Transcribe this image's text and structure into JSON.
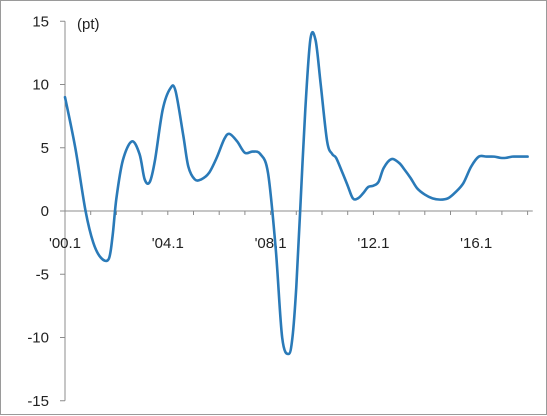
{
  "chart_data": {
    "type": "line",
    "title": "",
    "xlabel": "",
    "ylabel": "",
    "y_unit": "(pt)",
    "ylim": [
      -15,
      15
    ],
    "y_ticks": [
      15,
      10,
      5,
      0,
      -5,
      -10,
      -15
    ],
    "x_tick_labels": [
      "'00.1",
      "'04.1",
      "'08.1",
      "'12.1",
      "'16.1"
    ],
    "x_tick_years": [
      2000,
      2004,
      2008,
      2012,
      2016
    ],
    "xlim": [
      2000,
      2018.2
    ],
    "grid": false,
    "legend": "none",
    "colors": {
      "line": "#2a7ab8",
      "axis": "#8c8c8c"
    },
    "series": [
      {
        "x": [
          2000.0,
          2000.4,
          2000.8,
          2001.1,
          2001.4,
          2001.7,
          2001.85,
          2002.0,
          2002.25,
          2002.6,
          2002.9,
          2003.1,
          2003.3,
          2003.5,
          2003.8,
          2004.1,
          2004.3,
          2004.6,
          2004.8,
          2005.05,
          2005.3,
          2005.6,
          2005.9,
          2006.2,
          2006.4,
          2006.7,
          2007.0,
          2007.3,
          2007.6,
          2007.9,
          2008.2,
          2008.45,
          2008.7,
          2008.85,
          2009.0,
          2009.15,
          2009.35,
          2009.55,
          2009.75,
          2009.95,
          2010.2,
          2010.4,
          2010.55,
          2010.8,
          2011.0,
          2011.2,
          2011.4,
          2011.6,
          2011.8,
          2012.0,
          2012.2,
          2012.4,
          2012.7,
          2013.0,
          2013.2,
          2013.45,
          2013.7,
          2014.0,
          2014.3,
          2014.6,
          2014.9,
          2015.2,
          2015.5,
          2015.8,
          2016.1,
          2016.4,
          2016.7,
          2016.95,
          2017.15,
          2017.4,
          2017.6,
          2018.0
        ],
        "y": [
          9.0,
          5.0,
          0.0,
          -2.5,
          -3.7,
          -3.8,
          -2.0,
          1.0,
          4.0,
          5.5,
          4.5,
          2.5,
          2.3,
          4.0,
          8.0,
          9.7,
          9.5,
          6.0,
          3.5,
          2.5,
          2.5,
          3.0,
          4.2,
          5.7,
          6.1,
          5.5,
          4.6,
          4.7,
          4.5,
          3.0,
          -3.0,
          -10.0,
          -11.3,
          -10.0,
          -6.0,
          0.0,
          8.0,
          13.6,
          13.5,
          10.0,
          5.5,
          4.5,
          4.2,
          3.0,
          2.0,
          1.0,
          1.0,
          1.4,
          1.9,
          2.0,
          2.3,
          3.4,
          4.1,
          3.8,
          3.3,
          2.6,
          1.8,
          1.3,
          1.0,
          0.9,
          1.0,
          1.5,
          2.2,
          3.5,
          4.3,
          4.3,
          4.3,
          4.2,
          4.2,
          4.3,
          4.3,
          4.3
        ]
      }
    ]
  }
}
